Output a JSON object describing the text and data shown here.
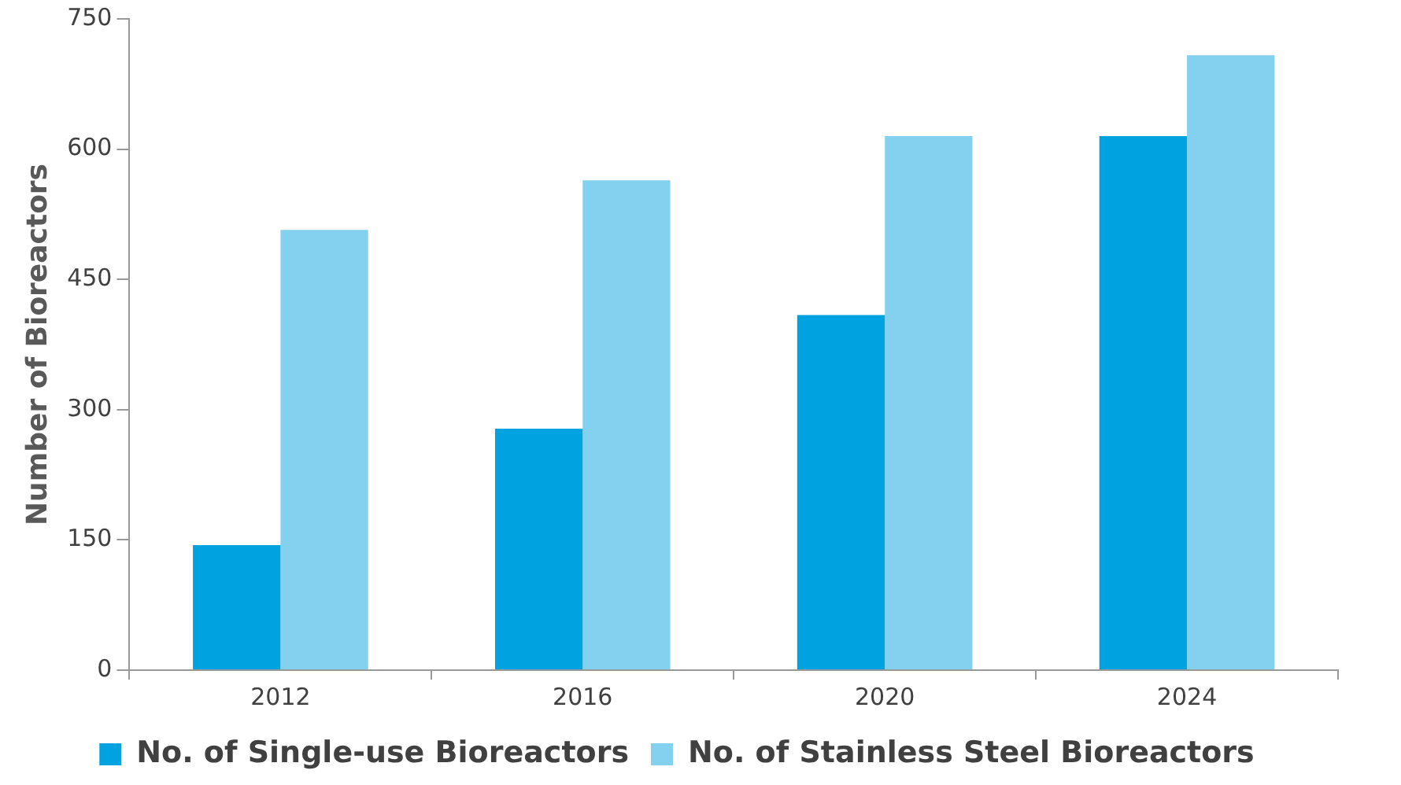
{
  "chart_data": {
    "type": "bar",
    "ylabel": "Number of Bioreactors",
    "categories": [
      "2012",
      "2016",
      "2020",
      "2024"
    ],
    "series": [
      {
        "name": "No. of Single-use Bioreactors",
        "color": "#00a3e0",
        "values": [
          144,
          278,
          409,
          615
        ]
      },
      {
        "name": "No. of Stainless Steel Bioreactors",
        "color": "#84d1ef",
        "values": [
          507,
          564,
          615,
          708
        ]
      }
    ],
    "ylim": [
      0,
      750
    ],
    "yticks": [
      0,
      150,
      300,
      450,
      600,
      750
    ],
    "grid": false,
    "legend": "bottom"
  }
}
